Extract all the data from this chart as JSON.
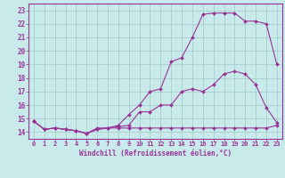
{
  "xlabel": "Windchill (Refroidissement éolien,°C)",
  "bg_color": "#c8eaea",
  "grid_color": "#a0c8c8",
  "line_color": "#993399",
  "xlim": [
    -0.5,
    23.5
  ],
  "ylim": [
    13.5,
    23.5
  ],
  "xticks": [
    0,
    1,
    2,
    3,
    4,
    5,
    6,
    7,
    8,
    9,
    10,
    11,
    12,
    13,
    14,
    15,
    16,
    17,
    18,
    19,
    20,
    21,
    22,
    23
  ],
  "yticks": [
    14,
    15,
    16,
    17,
    18,
    19,
    20,
    21,
    22,
    23
  ],
  "series1_x": [
    0,
    1,
    2,
    3,
    4,
    5,
    6,
    7,
    8,
    9,
    10,
    11,
    12,
    13,
    14,
    15,
    16,
    17,
    18,
    19,
    20,
    21,
    22,
    23
  ],
  "series1_y": [
    14.8,
    14.2,
    14.3,
    14.2,
    14.1,
    13.9,
    14.2,
    14.3,
    14.4,
    14.5,
    15.5,
    15.5,
    16.0,
    16.0,
    17.0,
    17.2,
    17.0,
    17.5,
    18.3,
    18.5,
    18.3,
    17.5,
    15.8,
    14.7
  ],
  "series2_x": [
    0,
    1,
    2,
    3,
    4,
    5,
    6,
    7,
    8,
    9,
    10,
    11,
    12,
    13,
    14,
    15,
    16,
    17,
    18,
    19,
    20,
    21,
    22,
    23
  ],
  "series2_y": [
    14.8,
    14.2,
    14.3,
    14.2,
    14.1,
    13.9,
    14.3,
    14.3,
    14.5,
    15.3,
    16.0,
    17.0,
    17.2,
    19.2,
    19.5,
    21.0,
    22.7,
    22.8,
    22.8,
    22.8,
    22.2,
    22.2,
    22.0,
    19.0
  ],
  "series3_x": [
    0,
    1,
    2,
    3,
    4,
    5,
    6,
    7,
    8,
    9,
    10,
    11,
    12,
    13,
    14,
    15,
    16,
    17,
    18,
    19,
    20,
    21,
    22,
    23
  ],
  "series3_y": [
    14.8,
    14.2,
    14.3,
    14.2,
    14.1,
    13.9,
    14.2,
    14.3,
    14.3,
    14.3,
    14.3,
    14.3,
    14.3,
    14.3,
    14.3,
    14.3,
    14.3,
    14.3,
    14.3,
    14.3,
    14.3,
    14.3,
    14.3,
    14.5
  ],
  "tick_fontsize": 5.0,
  "xlabel_fontsize": 5.5,
  "marker_size": 2.0,
  "line_width": 0.8
}
